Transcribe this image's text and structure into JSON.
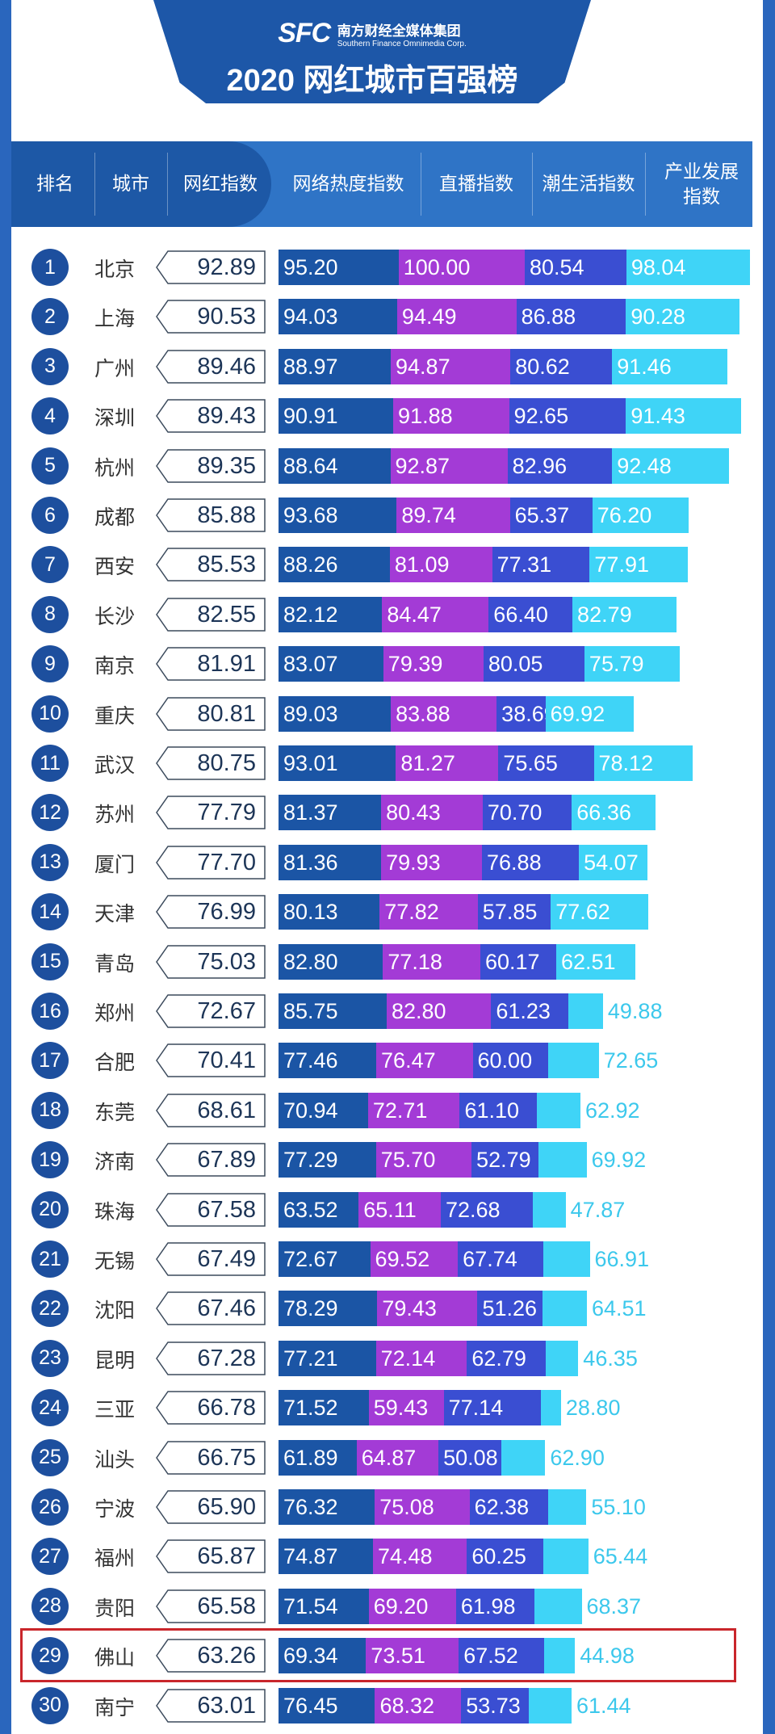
{
  "header": {
    "logo_mark": "SFC",
    "org_cn": "南方财经全媒体集团",
    "org_en": "Southern Finance Omnimedia Corp.",
    "title": "2020 网红城市百强榜"
  },
  "columns": [
    "排名",
    "城市",
    "网红指数",
    "网络热度指数",
    "直播指数",
    "潮生活指数",
    "产业发展指数"
  ],
  "colors": {
    "network": "#1b55a5",
    "live": "#a33bd6",
    "lifestyle": "#3a4ed2",
    "industry": "#3fd4f7",
    "highlight": "#c9262b"
  },
  "highlighted_rank": 28,
  "rows": [
    {
      "rank": "1",
      "city": "北京",
      "index": "92.89",
      "v": [
        "95.20",
        "100.00",
        "80.54",
        "98.04"
      ]
    },
    {
      "rank": "2",
      "city": "上海",
      "index": "90.53",
      "v": [
        "94.03",
        "94.49",
        "86.88",
        "90.28"
      ]
    },
    {
      "rank": "3",
      "city": "广州",
      "index": "89.46",
      "v": [
        "88.97",
        "94.87",
        "80.62",
        "91.46"
      ]
    },
    {
      "rank": "4",
      "city": "深圳",
      "index": "89.43",
      "v": [
        "90.91",
        "91.88",
        "92.65",
        "91.43"
      ]
    },
    {
      "rank": "5",
      "city": "杭州",
      "index": "89.35",
      "v": [
        "88.64",
        "92.87",
        "82.96",
        "92.48"
      ]
    },
    {
      "rank": "6",
      "city": "成都",
      "index": "85.88",
      "v": [
        "93.68",
        "89.74",
        "65.37",
        "76.20"
      ]
    },
    {
      "rank": "7",
      "city": "西安",
      "index": "85.53",
      "v": [
        "88.26",
        "81.09",
        "77.31",
        "77.91"
      ]
    },
    {
      "rank": "8",
      "city": "长沙",
      "index": "82.55",
      "v": [
        "82.12",
        "84.47",
        "66.40",
        "82.79"
      ]
    },
    {
      "rank": "9",
      "city": "南京",
      "index": "81.91",
      "v": [
        "83.07",
        "79.39",
        "80.05",
        "75.79"
      ]
    },
    {
      "rank": "10",
      "city": "重庆",
      "index": "80.81",
      "v": [
        "89.03",
        "83.88",
        "38.69",
        "69.92"
      ]
    },
    {
      "rank": "11",
      "city": "武汉",
      "index": "80.75",
      "v": [
        "93.01",
        "81.27",
        "75.65",
        "78.12"
      ]
    },
    {
      "rank": "12",
      "city": "苏州",
      "index": "77.79",
      "v": [
        "81.37",
        "80.43",
        "70.70",
        "66.36"
      ]
    },
    {
      "rank": "13",
      "city": "厦门",
      "index": "77.70",
      "v": [
        "81.36",
        "79.93",
        "76.88",
        "54.07"
      ]
    },
    {
      "rank": "14",
      "city": "天津",
      "index": "76.99",
      "v": [
        "80.13",
        "77.82",
        "57.85",
        "77.62"
      ]
    },
    {
      "rank": "15",
      "city": "青岛",
      "index": "75.03",
      "v": [
        "82.80",
        "77.18",
        "60.17",
        "62.51"
      ]
    },
    {
      "rank": "16",
      "city": "郑州",
      "index": "72.67",
      "v": [
        "85.75",
        "82.80",
        "61.23",
        "49.88"
      ]
    },
    {
      "rank": "17",
      "city": "合肥",
      "index": "70.41",
      "v": [
        "77.46",
        "76.47",
        "60.00",
        "72.65"
      ]
    },
    {
      "rank": "18",
      "city": "东莞",
      "index": "68.61",
      "v": [
        "70.94",
        "72.71",
        "61.10",
        "62.92"
      ]
    },
    {
      "rank": "19",
      "city": "济南",
      "index": "67.89",
      "v": [
        "77.29",
        "75.70",
        "52.79",
        "69.92"
      ]
    },
    {
      "rank": "20",
      "city": "珠海",
      "index": "67.58",
      "v": [
        "63.52",
        "65.11",
        "72.68",
        "47.87"
      ]
    },
    {
      "rank": "21",
      "city": "无锡",
      "index": "67.49",
      "v": [
        "72.67",
        "69.52",
        "67.74",
        "66.91"
      ]
    },
    {
      "rank": "22",
      "city": "沈阳",
      "index": "67.46",
      "v": [
        "78.29",
        "79.43",
        "51.26",
        "64.51"
      ]
    },
    {
      "rank": "23",
      "city": "昆明",
      "index": "67.28",
      "v": [
        "77.21",
        "72.14",
        "62.79",
        "46.35"
      ]
    },
    {
      "rank": "24",
      "city": "三亚",
      "index": "66.78",
      "v": [
        "71.52",
        "59.43",
        "77.14",
        "28.80"
      ]
    },
    {
      "rank": "25",
      "city": "汕头",
      "index": "66.75",
      "v": [
        "61.89",
        "64.87",
        "50.08",
        "62.90"
      ]
    },
    {
      "rank": "26",
      "city": "宁波",
      "index": "65.90",
      "v": [
        "76.32",
        "75.08",
        "62.38",
        "55.10"
      ]
    },
    {
      "rank": "27",
      "city": "福州",
      "index": "65.87",
      "v": [
        "74.87",
        "74.48",
        "60.25",
        "65.44"
      ]
    },
    {
      "rank": "28",
      "city": "贵阳",
      "index": "65.58",
      "v": [
        "71.54",
        "69.20",
        "61.98",
        "68.37"
      ]
    },
    {
      "rank": "29",
      "city": "佛山",
      "index": "63.26",
      "v": [
        "69.34",
        "73.51",
        "67.52",
        "44.98"
      ]
    },
    {
      "rank": "30",
      "city": "南宁",
      "index": "63.01",
      "v": [
        "76.45",
        "68.32",
        "53.73",
        "61.44"
      ]
    }
  ]
}
